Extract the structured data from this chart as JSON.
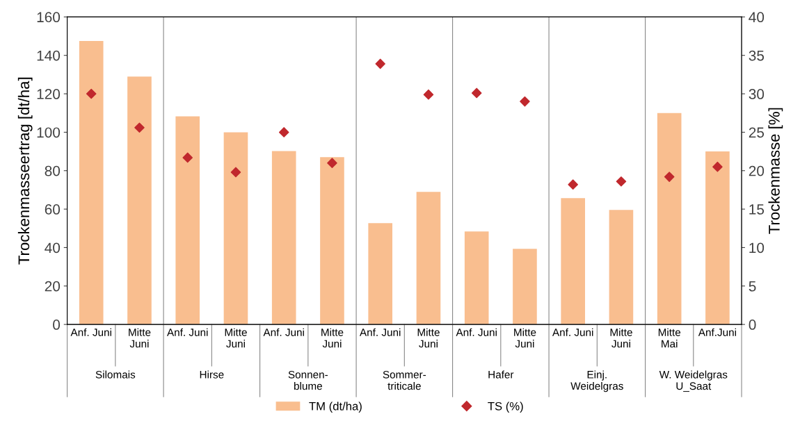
{
  "chart_data": {
    "type": "bar",
    "categories": [
      "Anf. Juni",
      "Mitte\nJuni",
      "Anf. Juni",
      "Mitte\nJuni",
      "Anf. Juni",
      "Mitte\nJuni",
      "Anf. Juni",
      "Mitte\nJuni",
      "Anf. Juni",
      "Mitte\nJuni",
      "Anf. Juni",
      "Mitte\nJuni",
      "Mitte\nMai",
      "Anf.Juni"
    ],
    "series": [
      {
        "name": "TM (dt/ha)",
        "color": "#f9be8f",
        "values": [
          147.5,
          129,
          108.3,
          100,
          90.2,
          87,
          52.7,
          69,
          48.4,
          39.3,
          65.7,
          59.6,
          110,
          90
        ]
      },
      {
        "name": "TS (%)",
        "color": "#c0282d",
        "type": "scatter",
        "axis": "y2",
        "marker": "diamond",
        "values": [
          30,
          25.6,
          21.7,
          19.8,
          25,
          21,
          33.9,
          29.9,
          30.1,
          29,
          18.2,
          18.6,
          19.2,
          20.5
        ]
      }
    ],
    "annotations": [
      "Silomais",
      "Hirse",
      "Sonnen-\nblume",
      "Sommer-\ntriticale",
      "Hafer",
      "Einj.\nWeidelgras",
      "W. Weidelgras\nU_Saat"
    ],
    "ylabel": "Trockenmasseertrag [dt/ha]",
    "y2label": "Trockenmasse [%]",
    "ylim": [
      0,
      160
    ],
    "yticks": [
      0,
      20,
      40,
      60,
      80,
      100,
      120,
      140,
      160
    ],
    "y2lim": [
      0,
      40
    ],
    "y2ticks": [
      0,
      5,
      10,
      15,
      20,
      25,
      30,
      35,
      40
    ],
    "legend": "bottom",
    "grid": false
  }
}
